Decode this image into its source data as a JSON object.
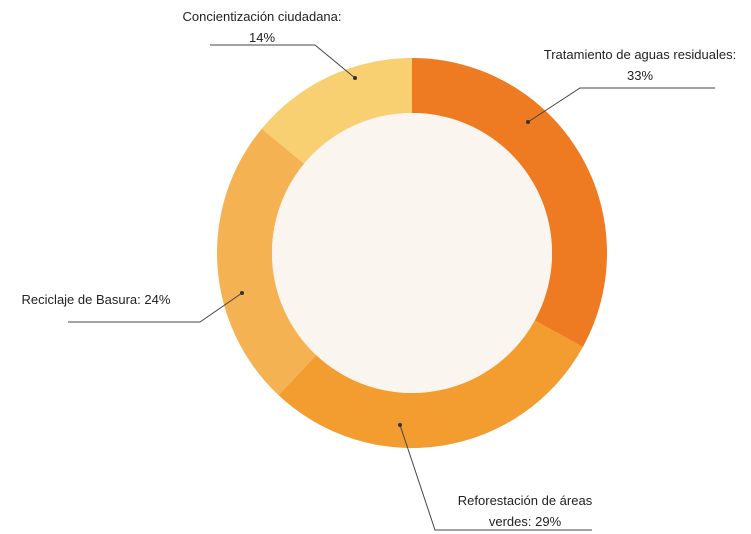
{
  "chart_data": {
    "type": "donut",
    "categories": [
      "Tratamiento de aguas residuales:",
      "Reforestación de áreas verdes:",
      "Reciclaje de Basura:",
      "Concientización ciudadana:"
    ],
    "values": [
      33,
      29,
      24,
      14
    ],
    "value_labels": [
      "33%",
      "29%",
      "24%",
      "14%"
    ],
    "colors": [
      "#ee7a22",
      "#f39c2f",
      "#f5b252",
      "#f8d072"
    ]
  }
}
